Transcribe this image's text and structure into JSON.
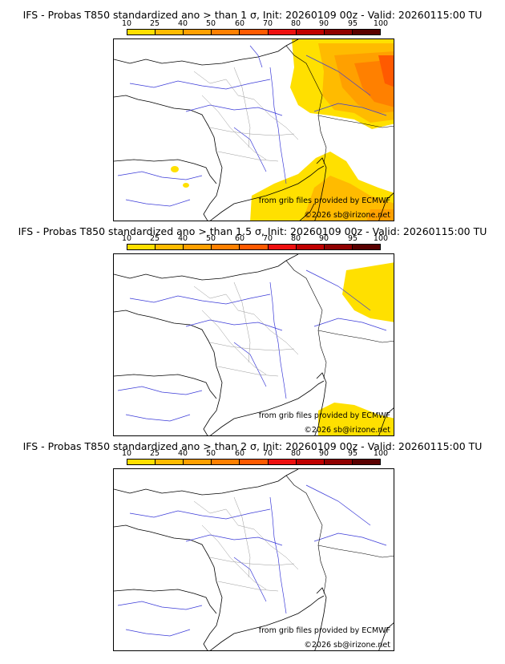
{
  "scale": {
    "ticks": [
      "10",
      "25",
      "40",
      "50",
      "60",
      "70",
      "80",
      "90",
      "95",
      "100"
    ],
    "colors": [
      "#ffff00",
      "#ffdf00",
      "#ffbb00",
      "#ffa000",
      "#ff8000",
      "#ff5a00",
      "#ee1010",
      "#c00000",
      "#900000",
      "#5a0000"
    ]
  },
  "panels": [
    {
      "title": "IFS - Probas T850  standardized ano > than 1 σ, Init: 20260109 00z - Valid: 20260115:00 TU",
      "credit_source": "from grib files provided by ECMWF",
      "credit_site": "©2026 sb@irizone.net"
    },
    {
      "title": "IFS - Probas T850  standardized ano > than 1.5 σ, Init: 20260109 00z - Valid: 20260115:00 TU",
      "credit_source": "from grib files provided by ECMWF",
      "credit_site": "©2026 sb@irizone.net"
    },
    {
      "title": "IFS - Probas T850  standardized ano > than 2 σ, Init: 20260109 00z - Valid: 20260115:00 TU",
      "credit_source": "from grib files provided by ECMWF",
      "credit_site": "©2026 sb@irizone.net"
    }
  ]
}
